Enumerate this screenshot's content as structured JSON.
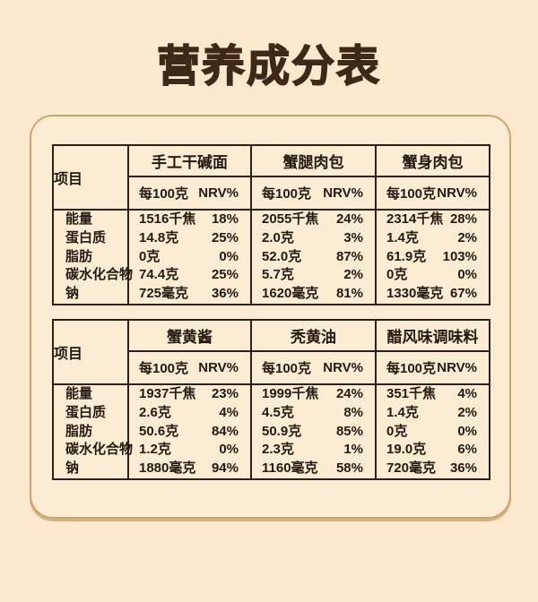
{
  "page": {
    "title": "营养成分表"
  },
  "colors": {
    "background": "#fde8cd",
    "panel_background": "#fdecd4",
    "panel_border": "#cfa468",
    "table_border": "#2b2115",
    "title_text": "#3e2817",
    "body_text": "#231a10"
  },
  "tables": [
    {
      "item_header": "项目",
      "products": [
        {
          "name": "手工干碱面",
          "per": "每100克",
          "nrv": "NRV%"
        },
        {
          "name": "蟹腿肉包",
          "per": "每100克",
          "nrv": "NRV%"
        },
        {
          "name": "蟹身肉包",
          "per": "每100克",
          "nrv": "NRV%"
        }
      ],
      "rows": [
        {
          "label": "能量",
          "v0": "1516千焦",
          "p0": "18%",
          "v1": "2055千焦",
          "p1": "24%",
          "v2": "2314千焦",
          "p2": "28%"
        },
        {
          "label": "蛋白质",
          "v0": "14.8克",
          "p0": "25%",
          "v1": "2.0克",
          "p1": "3%",
          "v2": "1.4克",
          "p2": "2%"
        },
        {
          "label": "脂肪",
          "v0": "0克",
          "p0": "0%",
          "v1": "52.0克",
          "p1": "87%",
          "v2": "61.9克",
          "p2": "103%"
        },
        {
          "label": "碳水化合物",
          "v0": "74.4克",
          "p0": "25%",
          "v1": "5.7克",
          "p1": "2%",
          "v2": "0克",
          "p2": "0%"
        },
        {
          "label": "钠",
          "v0": "725毫克",
          "p0": "36%",
          "v1": "1620毫克",
          "p1": "81%",
          "v2": "1330毫克",
          "p2": "67%"
        }
      ]
    },
    {
      "item_header": "项目",
      "products": [
        {
          "name": "蟹黄酱",
          "per": "每100克",
          "nrv": "NRV%"
        },
        {
          "name": "秃黄油",
          "per": "每100克",
          "nrv": "NRV%"
        },
        {
          "name": "醋风味调味料",
          "per": "每100克",
          "nrv": "NRV%"
        }
      ],
      "rows": [
        {
          "label": "能量",
          "v0": "1937千焦",
          "p0": "23%",
          "v1": "1999千焦",
          "p1": "24%",
          "v2": "351千焦",
          "p2": "4%"
        },
        {
          "label": "蛋白质",
          "v0": "2.6克",
          "p0": "4%",
          "v1": "4.5克",
          "p1": "8%",
          "v2": "1.4克",
          "p2": "2%"
        },
        {
          "label": "脂肪",
          "v0": "50.6克",
          "p0": "84%",
          "v1": "50.9克",
          "p1": "85%",
          "v2": "0克",
          "p2": "0%"
        },
        {
          "label": "碳水化合物",
          "v0": "1.2克",
          "p0": "0%",
          "v1": "2.3克",
          "p1": "1%",
          "v2": "19.0克",
          "p2": "6%"
        },
        {
          "label": "钠",
          "v0": "1880毫克",
          "p0": "94%",
          "v1": "1160毫克",
          "p1": "58%",
          "v2": "720毫克",
          "p2": "36%"
        }
      ]
    }
  ]
}
